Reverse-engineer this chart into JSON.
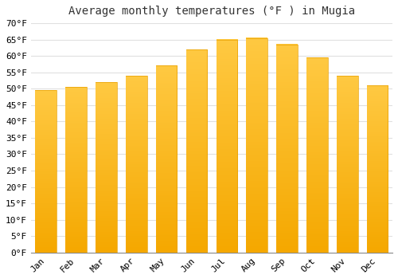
{
  "title": "Average monthly temperatures (°F ) in Mugia",
  "months": [
    "Jan",
    "Feb",
    "Mar",
    "Apr",
    "May",
    "Jun",
    "Jul",
    "Aug",
    "Sep",
    "Oct",
    "Nov",
    "Dec"
  ],
  "values": [
    49.5,
    50.5,
    52.0,
    54.0,
    57.0,
    62.0,
    65.0,
    65.5,
    63.5,
    59.5,
    54.0,
    51.0
  ],
  "bar_color_top": "#FFC942",
  "bar_color_bottom": "#F5A800",
  "background_color": "#ffffff",
  "grid_color": "#e0e0e0",
  "ylim": [
    0,
    70
  ],
  "ytick_step": 5,
  "title_fontsize": 10,
  "tick_fontsize": 8,
  "font_family": "monospace"
}
